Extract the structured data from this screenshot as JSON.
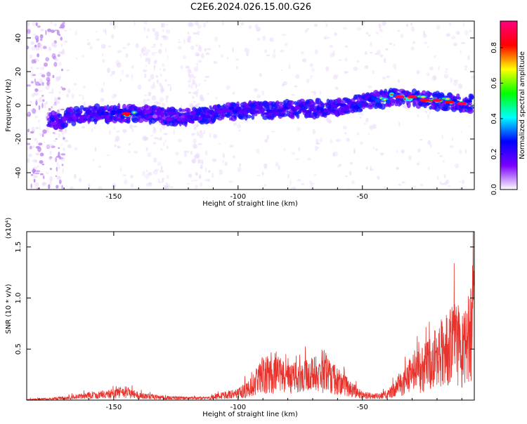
{
  "title": "C2E6.2024.026.15.00.G26",
  "chart_data": [
    {
      "type": "heatmap",
      "xlabel": "Height of straight line (km)",
      "ylabel": "Frequency (Hz)",
      "xlim": [
        -185,
        -5
      ],
      "ylim": [
        -50,
        50
      ],
      "x_ticks": [
        -150,
        -100,
        -50
      ],
      "y_ticks": [
        -40,
        -20,
        0,
        20,
        40
      ],
      "ridge": {
        "x": [
          -172,
          -165,
          -155,
          -145,
          -135,
          -125,
          -115,
          -105,
          -95,
          -85,
          -75,
          -65,
          -55,
          -45,
          -35,
          -25,
          -15,
          -8
        ],
        "y": [
          -9,
          -6,
          -5,
          -5,
          -5,
          -7,
          -6,
          -4,
          -3,
          -3,
          -2,
          -2,
          0,
          3,
          5,
          3,
          2,
          1
        ],
        "amplitude": [
          0.4,
          0.45,
          0.5,
          0.85,
          0.3,
          0.35,
          0.45,
          0.5,
          0.45,
          0.45,
          0.5,
          0.55,
          0.55,
          0.6,
          0.95,
          0.9,
          0.95,
          0.9
        ]
      },
      "colorbar": {
        "label": "Normalized spectral amplitude",
        "range": [
          0.0,
          0.95
        ],
        "ticks": [
          0.0,
          0.2,
          0.4,
          0.6,
          0.8
        ],
        "tick_labels": [
          "0.0",
          "0.2",
          "0.4",
          "0.6",
          "0.8"
        ],
        "colors": [
          "#ffffff",
          "#7b00ff",
          "#0000ff",
          "#00ffff",
          "#00ff00",
          "#ffff00",
          "#ff0000",
          "#ff0080"
        ]
      }
    },
    {
      "type": "line",
      "xlabel": "Height of straight line (km)",
      "ylabel": "SNR (10 * v/v)",
      "y_multiplier": "(x10⁴)",
      "xlim": [
        -185,
        -5
      ],
      "ylim": [
        0,
        1.65
      ],
      "x_ticks": [
        -150,
        -100,
        -50
      ],
      "y_ticks": [
        0.5,
        1.0,
        1.5
      ],
      "y_tick_labels": [
        "0.5",
        "1.0",
        "1.5"
      ],
      "color": "#e8322c",
      "envelope": {
        "x": [
          -185,
          -175,
          -165,
          -158,
          -150,
          -145,
          -140,
          -130,
          -120,
          -112,
          -105,
          -100,
          -95,
          -90,
          -85,
          -80,
          -75,
          -70,
          -65,
          -60,
          -55,
          -50,
          -45,
          -40,
          -35,
          -30,
          -25,
          -20,
          -15,
          -12,
          -10,
          -8,
          -6,
          -5
        ],
        "y": [
          0.01,
          0.02,
          0.05,
          0.08,
          0.1,
          0.13,
          0.07,
          0.04,
          0.03,
          0.03,
          0.08,
          0.1,
          0.2,
          0.38,
          0.42,
          0.32,
          0.35,
          0.38,
          0.48,
          0.3,
          0.18,
          0.08,
          0.06,
          0.08,
          0.25,
          0.4,
          0.5,
          0.65,
          0.85,
          0.9,
          0.75,
          0.9,
          1.3,
          1.1
        ]
      }
    }
  ]
}
